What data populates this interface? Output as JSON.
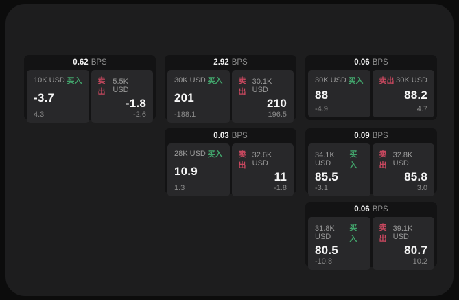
{
  "labels": {
    "buy": "买入",
    "sell": "卖出",
    "bps_unit": "BPS"
  },
  "colors": {
    "page_bg": "#0c0c0c",
    "panel_bg": "#1d1d1e",
    "card_bg": "#131314",
    "subcard_bg": "#28282a",
    "buy_accent": "#42a56c",
    "sell_accent": "#c9485f",
    "value_text": "#f7f7f7",
    "muted_text": "#8a8a8a"
  },
  "cards": [
    {
      "bps": "0.62",
      "buy": {
        "size": "10K USD",
        "value": "-3.7",
        "delta": "4.3"
      },
      "sell": {
        "size": "5.5K USD",
        "value": "-1.8",
        "delta": "-2.6"
      }
    },
    {
      "bps": "2.92",
      "buy": {
        "size": "30K USD",
        "value": "201",
        "delta": "-188.1"
      },
      "sell": {
        "size": "30.1K USD",
        "value": "210",
        "delta": "196.5"
      }
    },
    {
      "bps": "0.06",
      "buy": {
        "size": "30K USD",
        "value": "88",
        "delta": "-4.9"
      },
      "sell": {
        "size": "30K USD",
        "value": "88.2",
        "delta": "4.7"
      }
    },
    {
      "bps": "0.03",
      "buy": {
        "size": "28K USD",
        "value": "10.9",
        "delta": "1.3"
      },
      "sell": {
        "size": "32.6K USD",
        "value": "11",
        "delta": "-1.8"
      }
    },
    {
      "bps": "0.09",
      "buy": {
        "size": "34.1K USD",
        "value": "85.5",
        "delta": "-3.1"
      },
      "sell": {
        "size": "32.8K USD",
        "value": "85.8",
        "delta": "3.0"
      }
    },
    {
      "bps": "0.06",
      "buy": {
        "size": "31.8K USD",
        "value": "80.5",
        "delta": "-10.8"
      },
      "sell": {
        "size": "39.1K USD",
        "value": "80.7",
        "delta": "10.2"
      }
    }
  ]
}
